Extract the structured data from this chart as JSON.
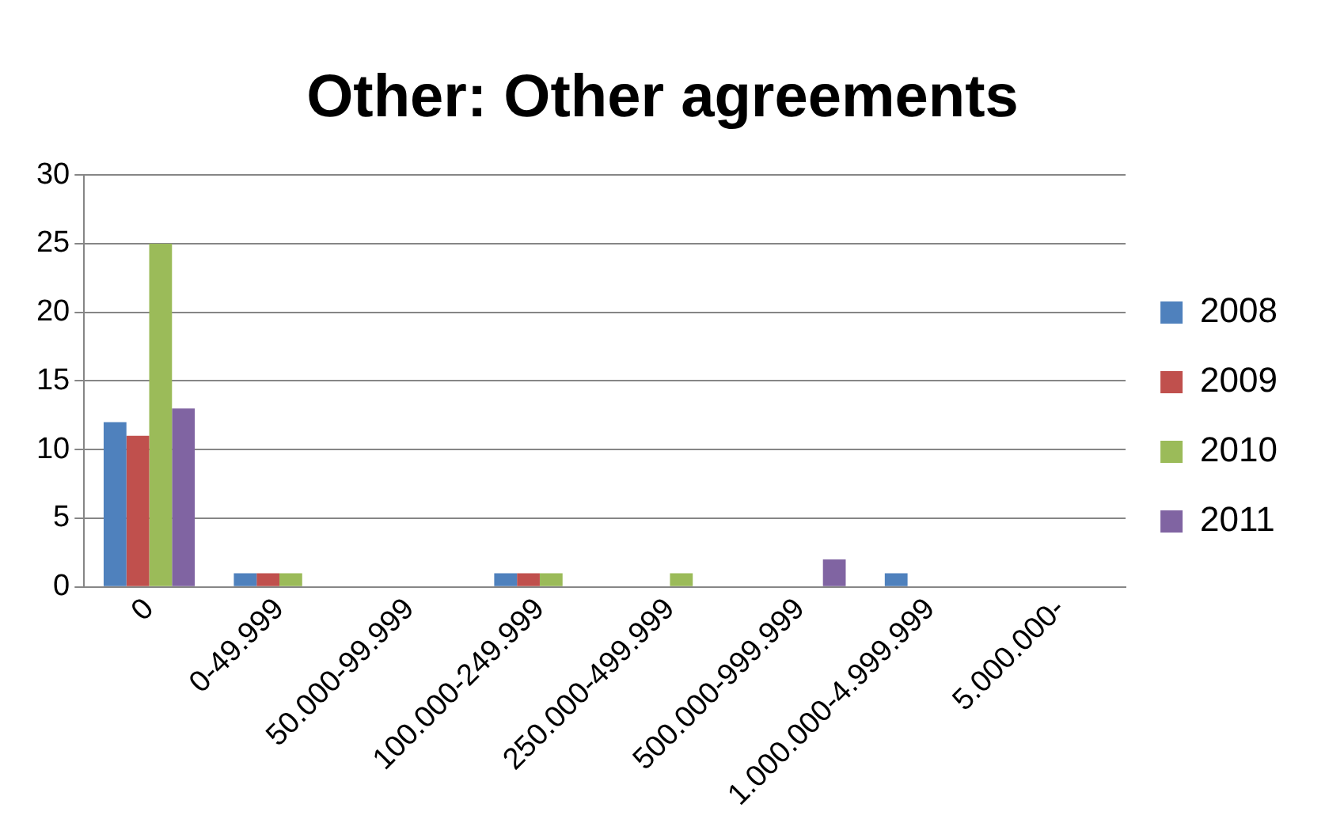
{
  "chart_data": {
    "type": "bar",
    "title": "Other: Other agreements",
    "categories": [
      "0",
      "0-49.999",
      "50.000-99.999",
      "100.000-249.999",
      "250.000-499.999",
      "500.000-999.999",
      "1.000.000-4.999.999",
      "5.000.000-"
    ],
    "series": [
      {
        "name": "2008",
        "color": "#4f81bd",
        "values": [
          12,
          1,
          0,
          1,
          0,
          0,
          1,
          0
        ]
      },
      {
        "name": "2009",
        "color": "#c0504d",
        "values": [
          11,
          1,
          0,
          1,
          0,
          0,
          0,
          0
        ]
      },
      {
        "name": "2010",
        "color": "#9bbb59",
        "values": [
          25,
          1,
          0,
          1,
          1,
          0,
          0,
          0
        ]
      },
      {
        "name": "2011",
        "color": "#8064a2",
        "values": [
          13,
          0,
          0,
          0,
          0,
          2,
          0,
          0
        ]
      }
    ],
    "ylim": [
      0,
      30
    ],
    "yticks": [
      0,
      5,
      10,
      15,
      20,
      25,
      30
    ],
    "grid": "y",
    "legend": "right"
  }
}
